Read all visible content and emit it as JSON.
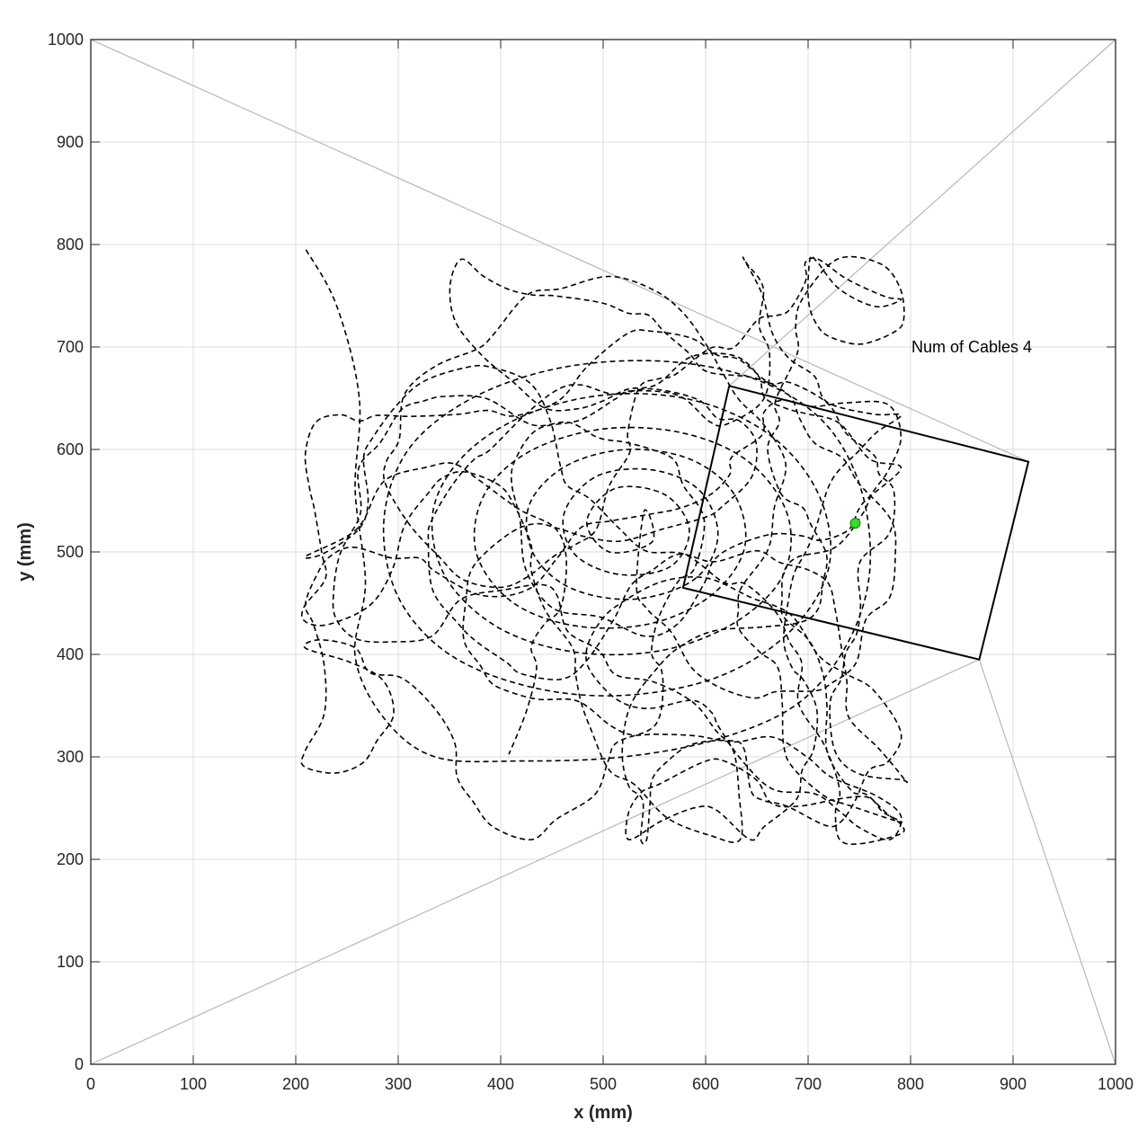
{
  "chart_data": {
    "type": "line",
    "title": "",
    "xlabel": "x (mm)",
    "ylabel": "y (mm)",
    "xlim": [
      0,
      1000
    ],
    "ylim": [
      0,
      1000
    ],
    "xticks": [
      0,
      100,
      200,
      300,
      400,
      500,
      600,
      700,
      800,
      900,
      1000
    ],
    "yticks": [
      0,
      100,
      200,
      300,
      400,
      500,
      600,
      700,
      800,
      900,
      1000
    ],
    "grid": true,
    "annotation": {
      "text": "Num of Cables 4",
      "x": 800,
      "y": 700
    },
    "anchors": [
      [
        0,
        1000
      ],
      [
        1000,
        1000
      ],
      [
        1000,
        0
      ],
      [
        0,
        0
      ]
    ],
    "cables": [
      {
        "from": [
          0,
          1000
        ],
        "to": [
          915,
          588
        ]
      },
      {
        "from": [
          1000,
          1000
        ],
        "to": [
          623,
          662
        ]
      },
      {
        "from": [
          1000,
          0
        ],
        "to": [
          867,
          395
        ]
      },
      {
        "from": [
          0,
          0
        ],
        "to": [
          867,
          395
        ]
      }
    ],
    "platform": [
      [
        623,
        662
      ],
      [
        915,
        588
      ],
      [
        867,
        395
      ],
      [
        578,
        465
      ]
    ],
    "end_effector": [
      746,
      528
    ],
    "trajectory_style": "dashed",
    "trajectory_region": {
      "x": [
        200,
        800
      ],
      "y": [
        210,
        795
      ]
    },
    "trajectory_samples": [
      [
        210,
        795
      ],
      [
        240,
        740
      ],
      [
        262,
        650
      ],
      [
        258,
        560
      ],
      [
        268,
        470
      ],
      [
        258,
        398
      ],
      [
        286,
        338
      ],
      [
        336,
        300
      ],
      [
        420,
        296
      ],
      [
        520,
        300
      ],
      [
        614,
        318
      ],
      [
        690,
        352
      ],
      [
        738,
        410
      ],
      [
        760,
        480
      ],
      [
        752,
        560
      ],
      [
        716,
        626
      ],
      [
        650,
        668
      ],
      [
        560,
        686
      ],
      [
        460,
        680
      ],
      [
        372,
        650
      ],
      [
        310,
        600
      ],
      [
        286,
        530
      ],
      [
        300,
        456
      ],
      [
        350,
        400
      ],
      [
        430,
        368
      ],
      [
        520,
        360
      ],
      [
        612,
        378
      ],
      [
        682,
        422
      ],
      [
        720,
        484
      ],
      [
        712,
        552
      ],
      [
        668,
        610
      ],
      [
        596,
        646
      ],
      [
        512,
        654
      ],
      [
        430,
        636
      ],
      [
        366,
        596
      ],
      [
        334,
        540
      ],
      [
        346,
        476
      ],
      [
        398,
        426
      ],
      [
        474,
        402
      ],
      [
        558,
        404
      ],
      [
        630,
        432
      ],
      [
        676,
        478
      ],
      [
        680,
        536
      ],
      [
        642,
        588
      ],
      [
        578,
        616
      ],
      [
        500,
        620
      ],
      [
        428,
        598
      ],
      [
        384,
        556
      ],
      [
        376,
        500
      ],
      [
        410,
        452
      ],
      [
        472,
        428
      ],
      [
        546,
        430
      ],
      [
        606,
        458
      ],
      [
        638,
        504
      ],
      [
        628,
        556
      ],
      [
        586,
        590
      ],
      [
        524,
        600
      ],
      [
        464,
        584
      ],
      [
        428,
        546
      ],
      [
        432,
        498
      ],
      [
        470,
        464
      ],
      [
        532,
        454
      ],
      [
        590,
        474
      ],
      [
        612,
        516
      ],
      [
        594,
        560
      ],
      [
        548,
        580
      ],
      [
        494,
        574
      ],
      [
        462,
        538
      ],
      [
        472,
        498
      ],
      [
        516,
        478
      ],
      [
        566,
        486
      ],
      [
        584,
        522
      ],
      [
        560,
        556
      ],
      [
        512,
        562
      ],
      [
        484,
        530
      ],
      [
        506,
        500
      ],
      [
        548,
        510
      ],
      [
        540,
        540
      ]
    ]
  }
}
